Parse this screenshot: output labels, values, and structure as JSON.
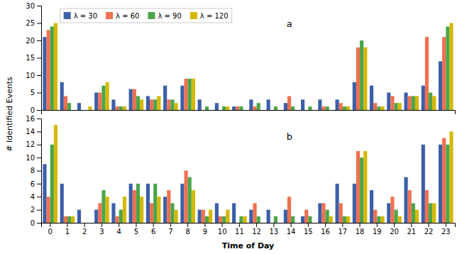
{
  "chart_data": [
    {
      "type": "bar",
      "title": "a",
      "ylabel": "# Identified Events",
      "categories": [
        0,
        1,
        2,
        3,
        4,
        5,
        6,
        7,
        8,
        9,
        10,
        11,
        12,
        13,
        14,
        15,
        16,
        17,
        18,
        19,
        20,
        21,
        22,
        23
      ],
      "series": [
        {
          "name": "λ = 30",
          "color": "#3c5fa8",
          "values": [
            21,
            8,
            2,
            5,
            3,
            6,
            4,
            7,
            7,
            3,
            2,
            1,
            3,
            3,
            2,
            3,
            3,
            3,
            8,
            7,
            5,
            5,
            7,
            14
          ]
        },
        {
          "name": "λ = 60",
          "color": "#f07050",
          "values": [
            23,
            4,
            0,
            5,
            1,
            6,
            3,
            3,
            9,
            0,
            0,
            1,
            1,
            0,
            4,
            0,
            1,
            2,
            18,
            2,
            4,
            4,
            21,
            21
          ]
        },
        {
          "name": "λ = 90",
          "color": "#4ba54b",
          "values": [
            24,
            2,
            0,
            7,
            1,
            4,
            3,
            3,
            9,
            1,
            1,
            1,
            2,
            1,
            1,
            1,
            1,
            1,
            20,
            1,
            2,
            4,
            5,
            24
          ]
        },
        {
          "name": "λ = 120",
          "color": "#d4b800",
          "values": [
            25,
            0,
            1,
            8,
            1,
            3,
            4,
            2,
            9,
            0,
            1,
            0,
            0,
            0,
            0,
            0,
            0,
            1,
            18,
            1,
            2,
            4,
            4,
            25
          ]
        }
      ],
      "ylim": [
        0,
        30
      ],
      "yticks": [
        0,
        5,
        10,
        15,
        20,
        25,
        30
      ],
      "grid": false,
      "legend": "upper left",
      "tick_labels": "y"
    },
    {
      "type": "bar",
      "title": "b",
      "xlabel": "Time of Day",
      "categories": [
        0,
        1,
        2,
        3,
        4,
        5,
        6,
        7,
        8,
        9,
        10,
        11,
        12,
        13,
        14,
        15,
        16,
        17,
        18,
        19,
        20,
        21,
        22,
        23
      ],
      "series": [
        {
          "color": "#3c5fa8",
          "values": [
            9,
            6,
            2,
            2,
            3,
            6,
            6,
            4,
            6,
            2,
            3,
            3,
            2,
            2,
            2,
            1,
            3,
            6,
            6,
            5,
            3,
            7,
            12,
            12
          ]
        },
        {
          "color": "#f07050",
          "values": [
            4,
            1,
            0,
            3,
            1,
            5,
            3,
            5,
            8,
            2,
            1,
            0,
            3,
            0,
            4,
            2,
            3,
            3,
            11,
            2,
            4,
            5,
            5,
            13
          ]
        },
        {
          "color": "#4ba54b",
          "values": [
            12,
            1,
            0,
            5,
            2,
            6,
            6,
            3,
            7,
            1,
            1,
            1,
            1,
            1,
            1,
            1,
            2,
            1,
            10,
            1,
            2,
            3,
            3,
            12
          ]
        },
        {
          "color": "#d4b800",
          "values": [
            15,
            1,
            0,
            4,
            4,
            4,
            4,
            2,
            5,
            2,
            2,
            1,
            0,
            0,
            0,
            0,
            1,
            1,
            11,
            1,
            1,
            2,
            3,
            14
          ]
        }
      ],
      "ylim": [
        0,
        16
      ],
      "yticks": [
        0,
        2,
        4,
        6,
        8,
        10,
        12,
        14,
        16
      ],
      "grid": false
    }
  ]
}
